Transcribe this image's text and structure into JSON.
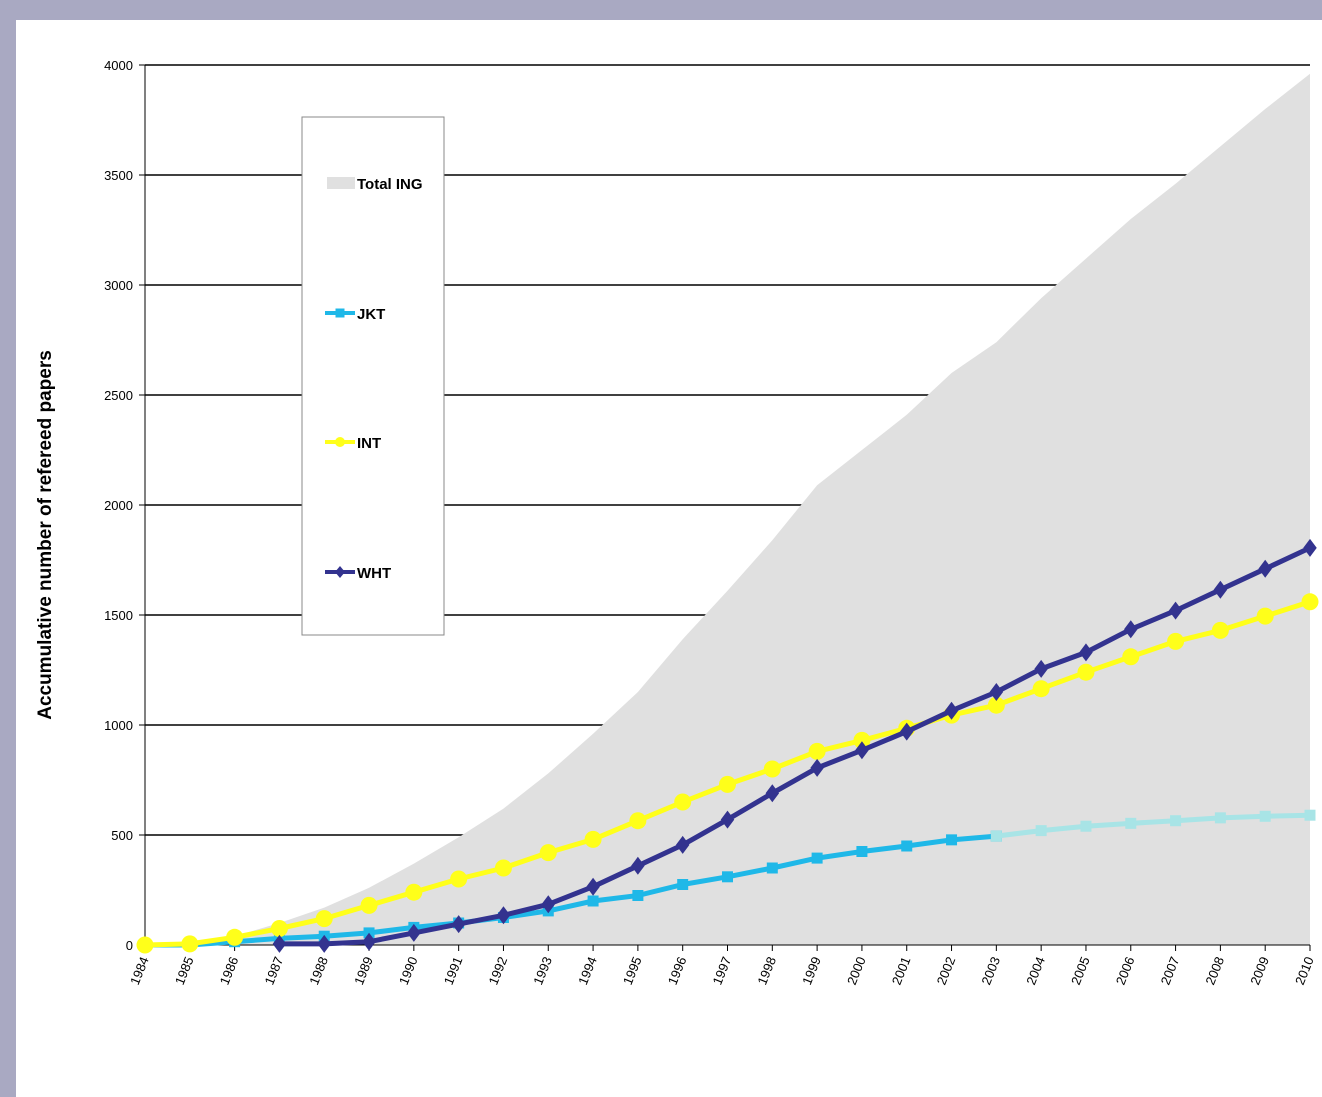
{
  "chart_data": {
    "type": "line",
    "ylabel": "Accumulative number of refereed papers",
    "xlabel": "",
    "ylim": [
      0,
      4000
    ],
    "yticks": [
      0,
      500,
      1000,
      1500,
      2000,
      2500,
      3000,
      3500,
      4000
    ],
    "x": [
      1984,
      1985,
      1986,
      1987,
      1988,
      1989,
      1990,
      1991,
      1992,
      1993,
      1994,
      1995,
      1996,
      1997,
      1998,
      1999,
      2000,
      2001,
      2002,
      2003,
      2004,
      2005,
      2006,
      2007,
      2008,
      2009,
      2010
    ],
    "grid": "horizontal",
    "legend_position": "top-left",
    "series": [
      {
        "name": "Total ING",
        "kind": "area",
        "color": "#e0e0e0",
        "x": [
          1984,
          1985,
          1986,
          1987,
          1988,
          1989,
          1990,
          1991,
          1992,
          1993,
          1994,
          1995,
          1996,
          1997,
          1998,
          1999,
          2000,
          2001,
          2002,
          2003,
          2004,
          2005,
          2006,
          2007,
          2008,
          2009,
          2010
        ],
        "values": [
          0,
          10,
          40,
          100,
          170,
          260,
          370,
          490,
          620,
          780,
          960,
          1150,
          1390,
          1610,
          1840,
          2090,
          2250,
          2410,
          2600,
          2740,
          2940,
          3120,
          3300,
          3460,
          3630,
          3800,
          3960
        ]
      },
      {
        "name": "JKT",
        "kind": "line",
        "color": "#1fb8e8",
        "marker": "square",
        "x": [
          1984,
          1985,
          1986,
          1987,
          1988,
          1989,
          1990,
          1991,
          1992,
          1993,
          1994,
          1995,
          1996,
          1997,
          1998,
          1999,
          2000,
          2001,
          2002,
          2003
        ],
        "values": [
          0,
          0,
          15,
          30,
          40,
          55,
          80,
          100,
          125,
          155,
          200,
          225,
          275,
          310,
          350,
          395,
          425,
          450,
          478,
          495
        ]
      },
      {
        "name": "",
        "kind": "line",
        "color": "#a8e4e6",
        "marker": "square",
        "x": [
          2003,
          2004,
          2005,
          2006,
          2007,
          2008,
          2009,
          2010
        ],
        "values": [
          495,
          520,
          540,
          553,
          565,
          578,
          585,
          590
        ]
      },
      {
        "name": "INT",
        "kind": "line",
        "color": "#ffff1a",
        "marker": "circle",
        "x": [
          1984,
          1985,
          1986,
          1987,
          1988,
          1989,
          1990,
          1991,
          1992,
          1993,
          1994,
          1995,
          1996,
          1997,
          1998,
          1999,
          2000,
          2001,
          2002,
          2003,
          2004,
          2005,
          2006,
          2007,
          2008,
          2009,
          2010
        ],
        "values": [
          0,
          5,
          35,
          75,
          120,
          180,
          240,
          300,
          350,
          420,
          480,
          565,
          650,
          730,
          800,
          880,
          930,
          985,
          1045,
          1090,
          1165,
          1240,
          1310,
          1380,
          1430,
          1495,
          1560
        ]
      },
      {
        "name": "WHT",
        "kind": "line",
        "color": "#33338f",
        "marker": "diamond",
        "x": [
          1987,
          1988,
          1989,
          1990,
          1991,
          1992,
          1993,
          1994,
          1995,
          1996,
          1997,
          1998,
          1999,
          2000,
          2001,
          2002,
          2003,
          2004,
          2005,
          2006,
          2007,
          2008,
          2009,
          2010
        ],
        "values": [
          5,
          5,
          15,
          55,
          95,
          135,
          185,
          265,
          360,
          455,
          570,
          690,
          805,
          885,
          970,
          1065,
          1150,
          1255,
          1330,
          1435,
          1520,
          1615,
          1710,
          1805
        ]
      }
    ]
  }
}
